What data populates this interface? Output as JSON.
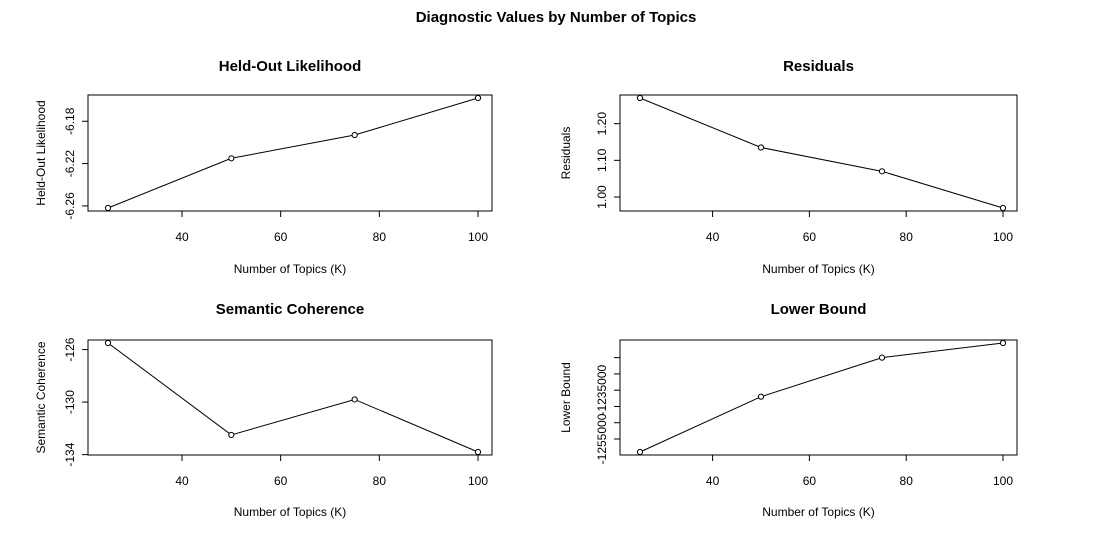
{
  "figure": {
    "title": "Diagnostic Values by Number of Topics"
  },
  "chart_data": [
    {
      "type": "line",
      "title": "Held-Out Likelihood",
      "xlabel": "Number of Topics (K)",
      "ylabel": "Held-Out Likelihood",
      "x": [
        25,
        50,
        75,
        100
      ],
      "y": [
        -6.262,
        -6.215,
        -6.193,
        -6.158
      ],
      "xlim": [
        25,
        100
      ],
      "ylim": [
        -6.262,
        -6.158
      ],
      "xticks": [
        40,
        60,
        80,
        100
      ],
      "yticks": [
        -6.26,
        -6.22,
        -6.18
      ],
      "ytick_labels": [
        "-6.26",
        "-6.22",
        "-6.18"
      ],
      "marker": "open-circle",
      "grid": false
    },
    {
      "type": "line",
      "title": "Residuals",
      "xlabel": "Number of Topics (K)",
      "ylabel": "Residuals",
      "x": [
        25,
        50,
        75,
        100
      ],
      "y": [
        1.27,
        1.135,
        1.07,
        0.97
      ],
      "xlim": [
        25,
        100
      ],
      "ylim": [
        0.97,
        1.27
      ],
      "xticks": [
        40,
        60,
        80,
        100
      ],
      "yticks": [
        1.0,
        1.1,
        1.2
      ],
      "ytick_labels": [
        "1.00",
        "1.10",
        "1.20"
      ],
      "marker": "open-circle",
      "grid": false
    },
    {
      "type": "line",
      "title": "Semantic Coherence",
      "xlabel": "Number of Topics (K)",
      "ylabel": "Semantic Coherence",
      "x": [
        25,
        50,
        75,
        100
      ],
      "y": [
        -125.5,
        -132.5,
        -129.8,
        -133.8
      ],
      "xlim": [
        25,
        100
      ],
      "ylim": [
        -133.8,
        -125.5
      ],
      "xticks": [
        40,
        60,
        80,
        100
      ],
      "yticks": [
        -134,
        -130,
        -126
      ],
      "ytick_labels": [
        "-134",
        "-130",
        "-126"
      ],
      "marker": "open-circle",
      "grid": false
    },
    {
      "type": "line",
      "title": "Lower Bound",
      "xlabel": "Number of Topics (K)",
      "ylabel": "Lower Bound",
      "x": [
        25,
        50,
        75,
        100
      ],
      "y": [
        -1259000,
        -1242000,
        -1230000,
        -1225500
      ],
      "xlim": [
        25,
        100
      ],
      "ylim": [
        -1259000,
        -1225500
      ],
      "xticks": [
        40,
        60,
        80,
        100
      ],
      "yticks": [
        -1255000,
        -1250000,
        -1245000,
        -1240000,
        -1235000,
        -1230000
      ],
      "ytick_labels": [
        "-1255000",
        "",
        "",
        "-1235000",
        "",
        ""
      ],
      "marker": "open-circle",
      "grid": false
    }
  ]
}
